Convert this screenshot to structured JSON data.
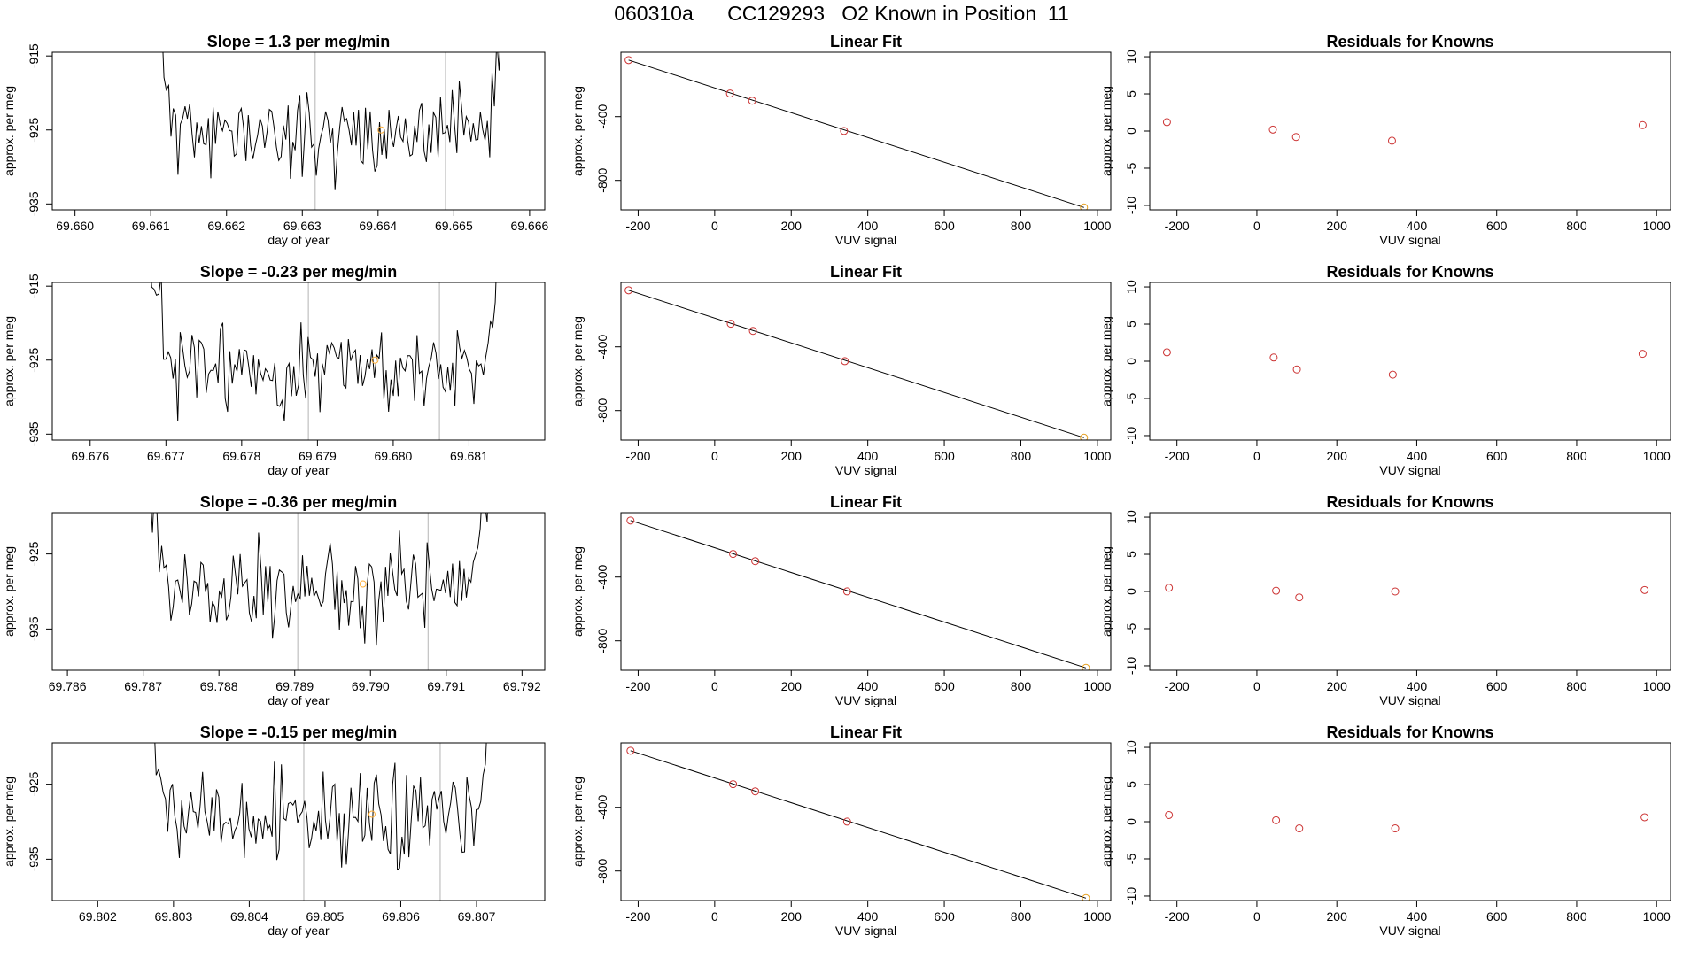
{
  "title": "060310a      CC129293   O2 Known in Position  11",
  "colors": {
    "line": "#000000",
    "marker_known": "#cc3333",
    "marker_highlight": "#e6a020",
    "marker_low": "#ffb03a",
    "vline": "#b4b4b4"
  },
  "chart_data": [
    {
      "type": "line",
      "panel": "timeseries-row-1",
      "title": "Slope =  1.3  per meg/min",
      "xlabel": "day of year",
      "ylabel": "approx. per meg",
      "xlim": [
        69.6597,
        69.6662
      ],
      "ylim": [
        -935.8,
        -914.5
      ],
      "xticks": [
        69.66,
        69.661,
        69.662,
        69.663,
        69.664,
        69.665,
        69.666
      ],
      "xtick_labels": [
        "69.660",
        "69.661",
        "69.662",
        "69.663",
        "69.664",
        "69.665",
        "69.666"
      ],
      "yticks": [
        -915,
        -925,
        -935
      ],
      "ytick_labels": [
        "-915",
        "-925",
        "-935"
      ],
      "vlines": [
        69.66317,
        69.66489
      ],
      "highlight_point": {
        "x": 69.66404,
        "y": -925
      },
      "trace": {
        "x_start": 69.66105,
        "x_end": 69.66569,
        "n": 150,
        "mean": -925.5,
        "amp": 2.8,
        "seed": 11
      }
    },
    {
      "type": "line",
      "panel": "timeseries-row-2",
      "title": "Slope =  -0.23  per meg/min",
      "xlabel": "day of year",
      "ylabel": "approx. per meg",
      "xlim": [
        69.6755,
        69.682
      ],
      "ylim": [
        -935.8,
        -914.5
      ],
      "xticks": [
        69.676,
        69.677,
        69.678,
        69.679,
        69.68,
        69.681
      ],
      "xtick_labels": [
        "69.676",
        "69.677",
        "69.678",
        "69.679",
        "69.680",
        "69.681"
      ],
      "yticks": [
        -915,
        -925,
        -935
      ],
      "ytick_labels": [
        "-915",
        "-925",
        "-935"
      ],
      "vlines": [
        69.67888,
        69.68061
      ],
      "highlight_point": {
        "x": 69.67976,
        "y": -925
      },
      "trace": {
        "x_start": 69.67675,
        "x_end": 69.68144,
        "n": 150,
        "mean": -926,
        "amp": 3,
        "seed": 23
      }
    },
    {
      "type": "line",
      "panel": "timeseries-row-3",
      "title": "Slope =  -0.36  per meg/min",
      "xlabel": "day of year",
      "ylabel": "approx. per meg",
      "xlim": [
        69.7858,
        69.7923
      ],
      "ylim": [
        -940.5,
        -919.5
      ],
      "xticks": [
        69.786,
        69.787,
        69.788,
        69.789,
        69.79,
        69.791,
        69.792
      ],
      "xtick_labels": [
        "69.786",
        "69.787",
        "69.788",
        "69.789",
        "69.790",
        "69.791",
        "69.792"
      ],
      "yticks": [
        -925,
        -935
      ],
      "ytick_labels": [
        "-925",
        "-935"
      ],
      "vlines": [
        69.78904,
        69.79076
      ],
      "highlight_point": {
        "x": 69.7899,
        "y": -929
      },
      "trace": {
        "x_start": 69.787,
        "x_end": 69.79157,
        "n": 150,
        "mean": -929.5,
        "amp": 3.2,
        "seed": 37
      }
    },
    {
      "type": "line",
      "panel": "timeseries-row-4",
      "title": "Slope =  -0.15  per meg/min",
      "xlabel": "day of year",
      "ylabel": "approx. per meg",
      "xlim": [
        69.8014,
        69.8079
      ],
      "ylim": [
        -940.5,
        -919.5
      ],
      "xticks": [
        69.802,
        69.803,
        69.804,
        69.805,
        69.806,
        69.807
      ],
      "xtick_labels": [
        "69.802",
        "69.803",
        "69.804",
        "69.805",
        "69.806",
        "69.807"
      ],
      "yticks": [
        -925,
        -935
      ],
      "ytick_labels": [
        "-925",
        "-935"
      ],
      "vlines": [
        69.80472,
        69.80652
      ],
      "highlight_point": {
        "x": 69.80562,
        "y": -929
      },
      "trace": {
        "x_start": 69.80268,
        "x_end": 69.80727,
        "n": 150,
        "mean": -929.5,
        "amp": 3,
        "seed": 53
      }
    },
    {
      "type": "scatter",
      "panel": "fit-row-1",
      "title": "Linear Fit",
      "xlabel": "VUV signal",
      "ylabel": "approx. per meg",
      "xlim": [
        -245,
        1035
      ],
      "ylim": [
        -985,
        4
      ],
      "xticks": [
        -200,
        0,
        200,
        400,
        600,
        800,
        1000
      ],
      "yticks": [
        -400,
        -800
      ],
      "points": [
        {
          "x": -225,
          "y": -45
        },
        {
          "x": 40,
          "y": -255
        },
        {
          "x": 98,
          "y": -300
        },
        {
          "x": 338,
          "y": -490
        },
        {
          "x": 965,
          "y": -970
        }
      ],
      "fit_line": {
        "x": [
          -225,
          965
        ],
        "y": [
          -45,
          -970
        ]
      }
    },
    {
      "type": "scatter",
      "panel": "fit-row-2",
      "title": "Linear Fit",
      "xlabel": "VUV signal",
      "ylabel": "approx. per meg",
      "xlim": [
        -245,
        1035
      ],
      "ylim": [
        -985,
        4
      ],
      "xticks": [
        -200,
        0,
        200,
        400,
        600,
        800,
        1000
      ],
      "yticks": [
        -400,
        -800
      ],
      "points": [
        {
          "x": -225,
          "y": -45
        },
        {
          "x": 42,
          "y": -255
        },
        {
          "x": 100,
          "y": -300
        },
        {
          "x": 340,
          "y": -490
        },
        {
          "x": 965,
          "y": -970
        }
      ],
      "fit_line": {
        "x": [
          -225,
          965
        ],
        "y": [
          -45,
          -970
        ]
      }
    },
    {
      "type": "scatter",
      "panel": "fit-row-3",
      "title": "Linear Fit",
      "xlabel": "VUV signal",
      "ylabel": "approx. per meg",
      "xlim": [
        -245,
        1035
      ],
      "ylim": [
        -985,
        4
      ],
      "xticks": [
        -200,
        0,
        200,
        400,
        600,
        800,
        1000
      ],
      "yticks": [
        -400,
        -800
      ],
      "points": [
        {
          "x": -220,
          "y": -45
        },
        {
          "x": 48,
          "y": -255
        },
        {
          "x": 106,
          "y": -300
        },
        {
          "x": 346,
          "y": -490
        },
        {
          "x": 970,
          "y": -970
        }
      ],
      "fit_line": {
        "x": [
          -220,
          970
        ],
        "y": [
          -45,
          -970
        ]
      }
    },
    {
      "type": "scatter",
      "panel": "fit-row-4",
      "title": "Linear Fit",
      "xlabel": "VUV signal",
      "ylabel": "approx. per meg",
      "xlim": [
        -245,
        1035
      ],
      "ylim": [
        -985,
        4
      ],
      "xticks": [
        -200,
        0,
        200,
        400,
        600,
        800,
        1000
      ],
      "yticks": [
        -400,
        -800
      ],
      "points": [
        {
          "x": -220,
          "y": -45
        },
        {
          "x": 48,
          "y": -255
        },
        {
          "x": 106,
          "y": -300
        },
        {
          "x": 346,
          "y": -490
        },
        {
          "x": 970,
          "y": -970
        }
      ],
      "fit_line": {
        "x": [
          -220,
          970
        ],
        "y": [
          -45,
          -970
        ]
      }
    },
    {
      "type": "scatter",
      "panel": "residuals-row-1",
      "title": "Residuals for Knowns",
      "xlabel": "VUV signal",
      "ylabel": "approx. per meg",
      "xlim": [
        -268,
        1035
      ],
      "ylim": [
        -10.6,
        10.6
      ],
      "xticks": [
        -200,
        0,
        200,
        400,
        600,
        800,
        1000
      ],
      "yticks": [
        10,
        5,
        0,
        -5,
        -10
      ],
      "points": [
        {
          "x": -225,
          "y": 1.2
        },
        {
          "x": 40,
          "y": 0.2
        },
        {
          "x": 98,
          "y": -0.8
        },
        {
          "x": 338,
          "y": -1.3
        },
        {
          "x": 965,
          "y": 0.8
        }
      ]
    },
    {
      "type": "scatter",
      "panel": "residuals-row-2",
      "title": "Residuals for Knowns",
      "xlabel": "VUV signal",
      "ylabel": "approx. per meg",
      "xlim": [
        -268,
        1035
      ],
      "ylim": [
        -10.6,
        10.6
      ],
      "xticks": [
        -200,
        0,
        200,
        400,
        600,
        800,
        1000
      ],
      "yticks": [
        10,
        5,
        0,
        -5,
        -10
      ],
      "points": [
        {
          "x": -225,
          "y": 1.2
        },
        {
          "x": 42,
          "y": 0.5
        },
        {
          "x": 100,
          "y": -1.1
        },
        {
          "x": 340,
          "y": -1.8
        },
        {
          "x": 965,
          "y": 1.0
        }
      ]
    },
    {
      "type": "scatter",
      "panel": "residuals-row-3",
      "title": "Residuals for Knowns",
      "xlabel": "VUV signal",
      "ylabel": "approx. per meg",
      "xlim": [
        -268,
        1035
      ],
      "ylim": [
        -10.6,
        10.6
      ],
      "xticks": [
        -200,
        0,
        200,
        400,
        600,
        800,
        1000
      ],
      "yticks": [
        10,
        5,
        0,
        -5,
        -10
      ],
      "points": [
        {
          "x": -220,
          "y": 0.5
        },
        {
          "x": 48,
          "y": 0.1
        },
        {
          "x": 106,
          "y": -0.8
        },
        {
          "x": 346,
          "y": 0.0
        },
        {
          "x": 970,
          "y": 0.2
        }
      ]
    },
    {
      "type": "scatter",
      "panel": "residuals-row-4",
      "title": "Residuals for Knowns",
      "xlabel": "VUV signal",
      "ylabel": "approx. per meg",
      "xlim": [
        -268,
        1035
      ],
      "ylim": [
        -10.6,
        10.6
      ],
      "xticks": [
        -200,
        0,
        200,
        400,
        600,
        800,
        1000
      ],
      "yticks": [
        10,
        5,
        0,
        -5,
        -10
      ],
      "points": [
        {
          "x": -220,
          "y": 0.9
        },
        {
          "x": 48,
          "y": 0.2
        },
        {
          "x": 106,
          "y": -0.9
        },
        {
          "x": 346,
          "y": -0.9
        },
        {
          "x": 970,
          "y": 0.6
        }
      ]
    }
  ]
}
